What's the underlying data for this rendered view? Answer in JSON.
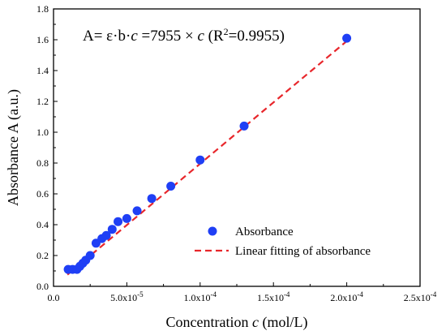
{
  "chart_data": {
    "type": "scatter",
    "title": "",
    "equation": {
      "prefix": "A= ε·b·",
      "c1": "c",
      "mid": " =7955 × ",
      "c2": "c",
      "r_open": " (R",
      "r_sup": "2",
      "r_close": "=0.9955)"
    },
    "xlabel": {
      "main": "Concentration ",
      "var": "c",
      "unit": " (mol/L)"
    },
    "ylabel": "Absorbance A (a.u.)",
    "xlim": [
      0,
      0.00025
    ],
    "ylim": [
      0,
      1.8
    ],
    "xticks": [
      {
        "value": 0,
        "label": "0.0"
      },
      {
        "value": 5e-05,
        "label": "5.0x10",
        "exp": "-5"
      },
      {
        "value": 0.0001,
        "label": "1.0x10",
        "exp": "-4"
      },
      {
        "value": 0.00015,
        "label": "1.5x10",
        "exp": "-4"
      },
      {
        "value": 0.0002,
        "label": "2.0x10",
        "exp": "-4"
      },
      {
        "value": 0.00025,
        "label": "2.5x10",
        "exp": "-4"
      }
    ],
    "yticks": [
      {
        "value": 0.0,
        "label": "0.0"
      },
      {
        "value": 0.2,
        "label": "0.2"
      },
      {
        "value": 0.4,
        "label": "0.4"
      },
      {
        "value": 0.6,
        "label": "0.6"
      },
      {
        "value": 0.8,
        "label": "0.8"
      },
      {
        "value": 1.0,
        "label": "1.0"
      },
      {
        "value": 1.2,
        "label": "1.2"
      },
      {
        "value": 1.4,
        "label": "1.4"
      },
      {
        "value": 1.6,
        "label": "1.6"
      },
      {
        "value": 1.8,
        "label": "1.8"
      }
    ],
    "series": [
      {
        "name": "Absorbance",
        "kind": "scatter",
        "color": "#1f3ff5",
        "points": [
          {
            "x": 1e-05,
            "y": 0.11
          },
          {
            "x": 1.3e-05,
            "y": 0.11
          },
          {
            "x": 1.6e-05,
            "y": 0.11
          },
          {
            "x": 1.8e-05,
            "y": 0.13
          },
          {
            "x": 2e-05,
            "y": 0.15
          },
          {
            "x": 2.2e-05,
            "y": 0.17
          },
          {
            "x": 2.5e-05,
            "y": 0.2
          },
          {
            "x": 2.9e-05,
            "y": 0.28
          },
          {
            "x": 3.3e-05,
            "y": 0.31
          },
          {
            "x": 3.6e-05,
            "y": 0.33
          },
          {
            "x": 4e-05,
            "y": 0.37
          },
          {
            "x": 4.4e-05,
            "y": 0.42
          },
          {
            "x": 5e-05,
            "y": 0.44
          },
          {
            "x": 5.7e-05,
            "y": 0.49
          },
          {
            "x": 6.7e-05,
            "y": 0.57
          },
          {
            "x": 8e-05,
            "y": 0.65
          },
          {
            "x": 0.0001,
            "y": 0.82
          },
          {
            "x": 0.00013,
            "y": 1.04
          },
          {
            "x": 0.0002,
            "y": 1.61
          }
        ]
      },
      {
        "name": "Linear fitting of absorbance",
        "kind": "line",
        "color": "#e8262b",
        "dash": "dashed",
        "slope": 7955,
        "x_range": [
          9.5e-06,
          0.0002
        ]
      }
    ],
    "legend_position": "lower-right",
    "grid": false
  }
}
